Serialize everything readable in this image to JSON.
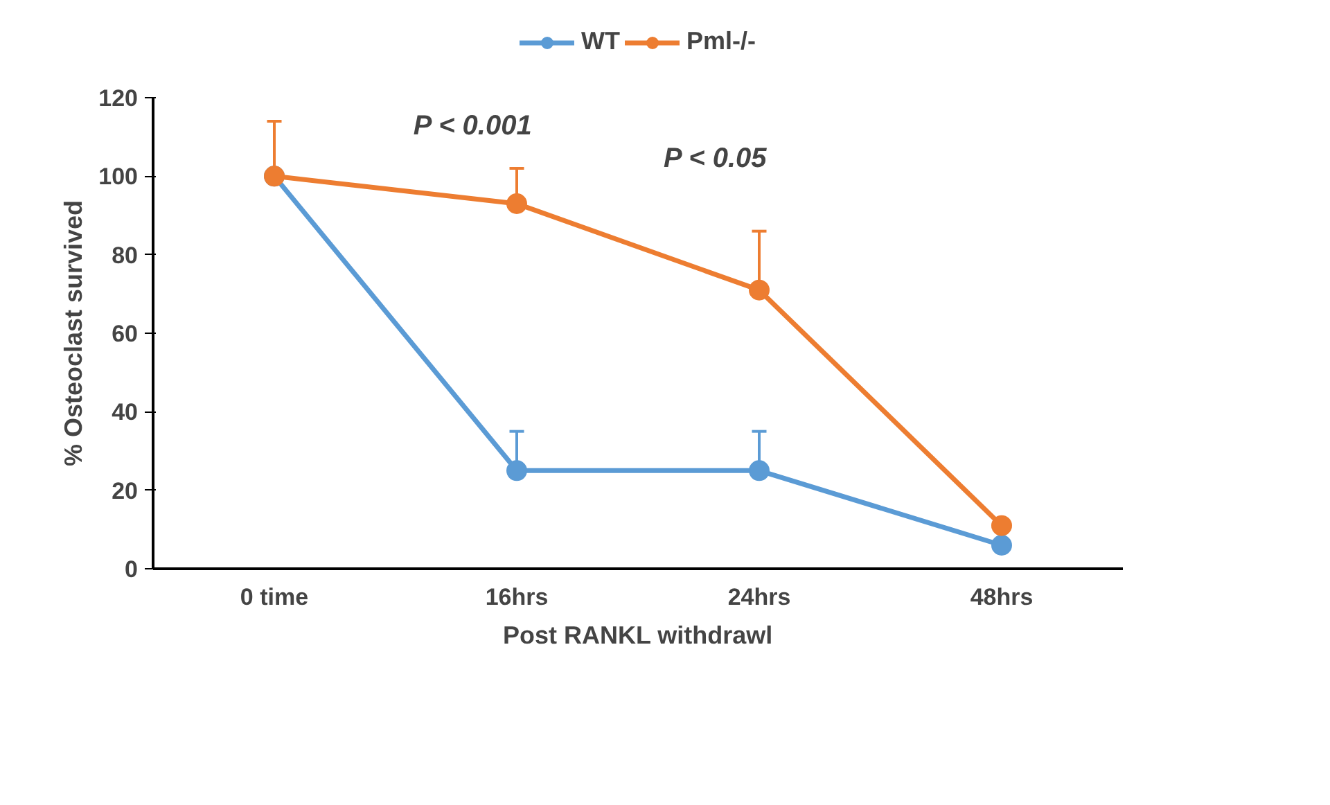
{
  "chart_data": {
    "type": "line",
    "xlabel": "Post RANKL withdrawl",
    "ylabel": "% Osteoclast survived",
    "categories": [
      "0 time",
      "16hrs",
      "24hrs",
      "48hrs"
    ],
    "series": [
      {
        "name": "WT",
        "color": "#5b9bd5",
        "values": [
          100,
          25,
          25,
          6
        ],
        "errors": [
          null,
          [
            25,
            35
          ],
          [
            25,
            35
          ],
          null
        ]
      },
      {
        "name": "Pml-/-",
        "color": "#ed7d31",
        "values": [
          100,
          93,
          71,
          11
        ],
        "errors": [
          [
            100,
            114
          ],
          [
            93,
            102
          ],
          [
            71,
            86
          ],
          null
        ]
      }
    ],
    "ylim": [
      0,
      120
    ],
    "yticks": [
      0,
      20,
      40,
      60,
      80,
      100,
      120
    ],
    "annotations": [
      "P < 0.001",
      "P < 0.05"
    ],
    "legend": "top",
    "marker": "circle",
    "line_style": "solid",
    "grid": false
  }
}
